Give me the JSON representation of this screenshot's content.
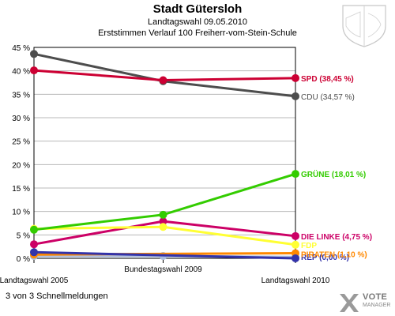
{
  "header": {
    "title": "Stadt Gütersloh",
    "subtitle": "Landtagswahl 09.05.2010",
    "subtitle2": "Erststimmen Verlauf 100 Freiherr-vom-Stein-Schule"
  },
  "footer": {
    "note": "3 von 3 Schnellmeldungen"
  },
  "brand": {
    "line1": "VOTE",
    "line2": "MANAGER"
  },
  "colors": {
    "grid": "#b8b8b8",
    "axis": "#000000",
    "SPD": "#cc0033",
    "CDU": "#4d4d4d",
    "GRUENE": "#33cc00",
    "FDP": "#ffff33",
    "DIE LINKE": "#cc0066",
    "REP": "#3333aa",
    "PIRATEN": "#ff8800",
    "OTHER": "#aabbdd"
  },
  "chart_data": {
    "type": "line",
    "categories": [
      "Landtagswahl 2005",
      "Bundestagswahl 2009",
      "Landtagswahl 2010"
    ],
    "ylim": [
      0,
      45
    ],
    "yticks": [
      0,
      5,
      10,
      15,
      20,
      25,
      30,
      35,
      40,
      45
    ],
    "ytick_labels": [
      "0 %",
      "5 %",
      "10 %",
      "15 %",
      "20 %",
      "25 %",
      "30 %",
      "35 %",
      "40 %",
      "45 %"
    ],
    "grid": true,
    "series": [
      {
        "name": "SPD",
        "label": "SPD (38,45 %)",
        "color": "#cc0033",
        "values": [
          40.1,
          38.0,
          38.45
        ]
      },
      {
        "name": "CDU",
        "label": "CDU (34,57 %)",
        "color": "#4d4d4d",
        "values": [
          43.6,
          37.8,
          34.57
        ]
      },
      {
        "name": "GRÜNE",
        "label": "GRÜNE (18,01 %)",
        "color": "#33cc00",
        "values": [
          6.1,
          9.3,
          18.01
        ]
      },
      {
        "name": "FDP",
        "label": "FDP",
        "color": "#ffff33",
        "values": [
          6.3,
          6.7,
          2.9
        ]
      },
      {
        "name": "DIE LINKE",
        "label": "DIE LINKE (4,75 %)",
        "color": "#cc0066",
        "values": [
          3.0,
          7.9,
          4.75
        ]
      },
      {
        "name": "REP",
        "label": "REP (0,00 %)",
        "color": "#3333aa",
        "values": [
          1.3,
          null,
          0.0
        ]
      },
      {
        "name": "PIRATEN",
        "label": "PIRATEN (1,10 %)",
        "color": "#ff8800",
        "values": [
          0.8,
          null,
          1.1
        ]
      },
      {
        "name": "",
        "label": "",
        "color": "#aabbdd",
        "values": [
          0.5,
          0.5,
          0.3
        ]
      }
    ]
  }
}
